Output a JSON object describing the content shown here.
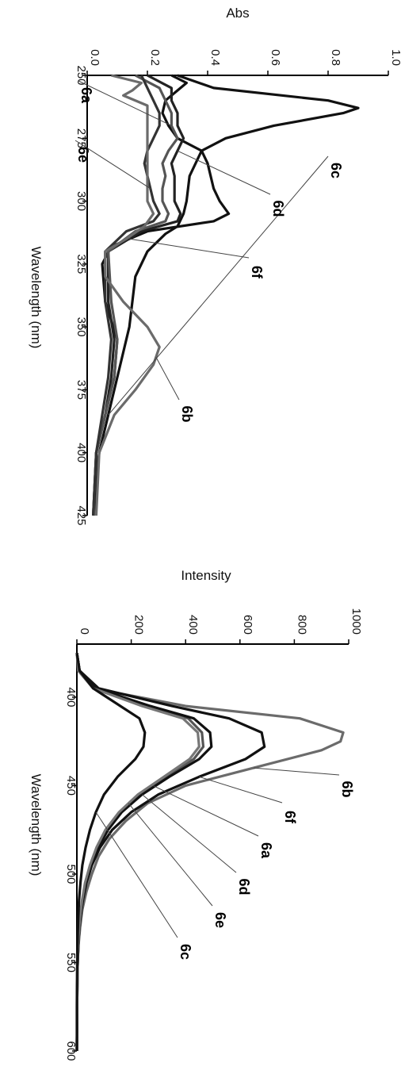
{
  "chart_data": [
    {
      "type": "line",
      "orientation": "rotated-90-clockwise",
      "xlabel": "Wavelength (nm)",
      "ylabel": "Abs",
      "xlim": [
        250,
        425
      ],
      "ylim": [
        0,
        1.0
      ],
      "xticks": [
        "250",
        "275",
        "300",
        "325",
        "350",
        "375",
        "400",
        "425"
      ],
      "yticks": [
        "0.0",
        "0.2",
        "0.4",
        "0.6",
        "0.8",
        "1.0"
      ],
      "grid": false,
      "series": [
        {
          "name": "6c",
          "color": "#111111",
          "x": [
            250,
            255,
            260,
            263,
            265,
            270,
            275,
            280,
            290,
            300,
            305,
            310,
            313,
            320,
            330,
            340,
            350,
            360,
            370,
            380,
            390,
            400,
            410,
            425
          ],
          "y": [
            0.3,
            0.42,
            0.8,
            0.9,
            0.85,
            0.62,
            0.46,
            0.38,
            0.34,
            0.33,
            0.32,
            0.3,
            0.26,
            0.2,
            0.16,
            0.15,
            0.14,
            0.12,
            0.1,
            0.08,
            0.06,
            0.04,
            0.03,
            0.03
          ]
        },
        {
          "name": "6f",
          "color": "#111111",
          "x": [
            250,
            253,
            256,
            260,
            265,
            270,
            275,
            280,
            285,
            290,
            295,
            300,
            305,
            308,
            312,
            318,
            325,
            340,
            355,
            370,
            385,
            400,
            425
          ],
          "y": [
            0.28,
            0.33,
            0.3,
            0.26,
            0.25,
            0.27,
            0.3,
            0.38,
            0.4,
            0.41,
            0.42,
            0.44,
            0.47,
            0.42,
            0.2,
            0.08,
            0.05,
            0.06,
            0.1,
            0.09,
            0.06,
            0.03,
            0.03
          ]
        },
        {
          "name": "6d",
          "color": "#222222",
          "x": [
            250,
            255,
            260,
            265,
            270,
            275,
            280,
            285,
            290,
            295,
            300,
            305,
            308,
            312,
            320,
            340,
            355,
            370,
            385,
            400,
            425
          ],
          "y": [
            0.2,
            0.28,
            0.28,
            0.3,
            0.3,
            0.32,
            0.3,
            0.28,
            0.29,
            0.29,
            0.29,
            0.31,
            0.3,
            0.18,
            0.07,
            0.07,
            0.09,
            0.08,
            0.06,
            0.03,
            0.02
          ]
        },
        {
          "name": "6a",
          "color": "#555555",
          "x": [
            250,
            255,
            260,
            265,
            270,
            275,
            280,
            285,
            290,
            295,
            300,
            305,
            308,
            312,
            320,
            340,
            355,
            370,
            385,
            400,
            425
          ],
          "y": [
            0.16,
            0.24,
            0.26,
            0.28,
            0.28,
            0.3,
            0.27,
            0.25,
            0.26,
            0.25,
            0.25,
            0.27,
            0.26,
            0.16,
            0.07,
            0.08,
            0.1,
            0.09,
            0.06,
            0.03,
            0.02
          ]
        },
        {
          "name": "6e",
          "color": "#333333",
          "x": [
            250,
            255,
            260,
            265,
            270,
            275,
            280,
            285,
            290,
            295,
            300,
            305,
            308,
            312,
            320,
            340,
            355,
            370,
            385,
            400,
            425
          ],
          "y": [
            0.18,
            0.2,
            0.22,
            0.24,
            0.24,
            0.22,
            0.2,
            0.19,
            0.2,
            0.21,
            0.22,
            0.24,
            0.22,
            0.13,
            0.06,
            0.06,
            0.08,
            0.07,
            0.05,
            0.03,
            0.02
          ]
        },
        {
          "name": "6b",
          "color": "#6b6b6b",
          "x": [
            250,
            253,
            256,
            258,
            262,
            270,
            280,
            290,
            300,
            305,
            310,
            315,
            320,
            330,
            340,
            350,
            358,
            365,
            375,
            385,
            400,
            425
          ],
          "y": [
            0.08,
            0.18,
            0.15,
            0.12,
            0.2,
            0.2,
            0.2,
            0.2,
            0.2,
            0.22,
            0.19,
            0.13,
            0.06,
            0.06,
            0.12,
            0.2,
            0.24,
            0.22,
            0.16,
            0.09,
            0.04,
            0.03
          ]
        }
      ]
    },
    {
      "type": "line",
      "orientation": "rotated-90-clockwise",
      "xlabel": "Wavelength (nm)",
      "ylabel": "Intensity",
      "xlim": [
        370,
        600
      ],
      "ylim": [
        0,
        1000
      ],
      "xticks": [
        "400",
        "450",
        "500",
        "550",
        "600"
      ],
      "yticks": [
        "0",
        "200",
        "400",
        "600",
        "800",
        "1000"
      ],
      "grid": false,
      "series": [
        {
          "name": "6b",
          "color": "#6b6b6b",
          "x": [
            375,
            385,
            395,
            405,
            412,
            420,
            425,
            430,
            440,
            450,
            460,
            470,
            480,
            490,
            500,
            510,
            520,
            530,
            540,
            550,
            570,
            600
          ],
          "y": [
            0,
            5,
            60,
            400,
            820,
            980,
            970,
            900,
            650,
            400,
            260,
            180,
            120,
            80,
            55,
            35,
            20,
            12,
            6,
            3,
            1,
            0
          ]
        },
        {
          "name": "6f",
          "color": "#111111",
          "x": [
            375,
            385,
            395,
            405,
            412,
            420,
            428,
            435,
            445,
            455,
            465,
            475,
            485,
            495,
            505,
            515,
            525,
            535,
            545,
            555,
            575,
            600
          ],
          "y": [
            0,
            10,
            80,
            350,
            560,
            680,
            690,
            620,
            450,
            300,
            200,
            130,
            85,
            55,
            35,
            22,
            13,
            7,
            4,
            2,
            1,
            0
          ]
        },
        {
          "name": "6a",
          "color": "#555555",
          "x": [
            375,
            385,
            395,
            405,
            412,
            420,
            428,
            435,
            445,
            455,
            465,
            475,
            485,
            495,
            505,
            515,
            525,
            535,
            545,
            555,
            575,
            600
          ],
          "y": [
            0,
            10,
            70,
            260,
            410,
            460,
            465,
            430,
            330,
            230,
            160,
            110,
            75,
            50,
            32,
            20,
            12,
            7,
            4,
            2,
            1,
            0
          ]
        },
        {
          "name": "6d",
          "color": "#111111",
          "x": [
            375,
            385,
            395,
            405,
            412,
            420,
            428,
            435,
            445,
            455,
            465,
            475,
            485,
            495,
            505,
            515,
            525,
            535,
            545,
            555,
            575,
            600
          ],
          "y": [
            0,
            10,
            70,
            270,
            430,
            490,
            495,
            450,
            340,
            240,
            165,
            115,
            78,
            52,
            33,
            21,
            12,
            7,
            4,
            2,
            1,
            0
          ]
        },
        {
          "name": "6e",
          "color": "#777777",
          "x": [
            375,
            385,
            395,
            405,
            412,
            420,
            428,
            435,
            445,
            455,
            465,
            475,
            485,
            495,
            505,
            515,
            525,
            535,
            545,
            555,
            575,
            600
          ],
          "y": [
            0,
            8,
            60,
            240,
            390,
            445,
            450,
            415,
            320,
            225,
            155,
            105,
            72,
            48,
            30,
            19,
            11,
            6,
            3,
            2,
            1,
            0
          ]
        },
        {
          "name": "6c",
          "color": "#111111",
          "x": [
            375,
            385,
            395,
            405,
            412,
            420,
            428,
            435,
            445,
            455,
            465,
            475,
            485,
            495,
            505,
            515,
            525,
            535,
            545,
            555,
            575,
            600
          ],
          "y": [
            0,
            10,
            60,
            160,
            230,
            250,
            245,
            215,
            150,
            100,
            70,
            48,
            32,
            20,
            13,
            8,
            5,
            3,
            2,
            1,
            0,
            0
          ]
        }
      ]
    }
  ]
}
